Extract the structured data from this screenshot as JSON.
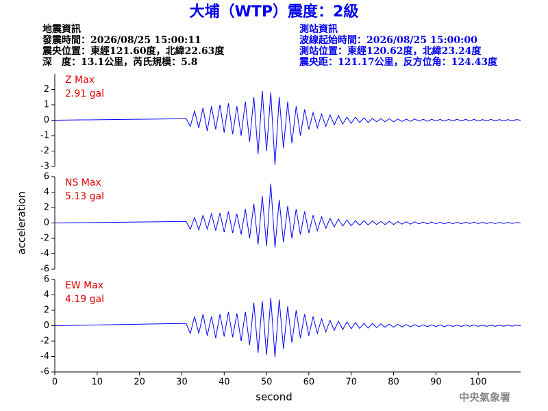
{
  "header": {
    "title": "大埔（WTP）震度：2級",
    "left": [
      "地震資訊",
      "發震時間：2026/08/25 15:00:11",
      "震央位置：東經121.60度，北緯22.63度",
      "深　度：13.1公里，芮氏規模：5.8"
    ],
    "right": [
      "測站資訊",
      "波線起始時間：2026/08/25 15:00:00",
      "測站位置：東經120.62度，北緯23.24度",
      "震央距：121.17公里，反方位角：124.43度"
    ]
  },
  "footer": "中央氣象署",
  "chart_data": [
    {
      "type": "line",
      "annotations": [
        "Z Max",
        "2.91 gal"
      ],
      "color": "#0000ff",
      "xlim": [
        0,
        110
      ],
      "ylim": [
        -3,
        3
      ],
      "yticks": [
        -3,
        -2,
        -1,
        0,
        1,
        2
      ],
      "x": [
        0,
        31,
        32,
        33,
        34,
        35,
        36,
        37,
        38,
        39,
        40,
        41,
        42,
        43,
        44,
        45,
        46,
        47,
        48,
        49,
        50,
        51,
        52,
        53,
        54,
        55,
        56,
        57,
        58,
        59,
        60,
        61,
        62,
        63,
        64,
        65,
        66,
        67,
        68,
        69,
        70,
        71,
        72,
        73,
        74,
        75,
        76,
        77,
        78,
        79,
        80,
        81,
        82,
        83,
        84,
        85,
        86,
        87,
        88,
        89,
        90,
        91,
        92,
        93,
        94,
        95,
        96,
        97,
        98,
        99,
        100,
        101,
        102,
        103,
        104,
        105,
        106,
        107,
        108,
        109,
        110
      ],
      "values": [
        0,
        0.1,
        -0.4,
        0.6,
        -0.5,
        0.8,
        -0.7,
        0.9,
        -0.6,
        1.0,
        -0.8,
        1.1,
        -0.9,
        0.9,
        -1.0,
        1.2,
        -1.4,
        1.5,
        -2.2,
        1.9,
        -2.0,
        1.8,
        -2.9,
        1.5,
        -1.8,
        1.2,
        -1.5,
        0.9,
        -1.0,
        0.7,
        -0.6,
        0.5,
        -0.5,
        0.4,
        -0.4,
        0.35,
        -0.3,
        0.3,
        -0.25,
        0.2,
        -0.2,
        0.2,
        -0.15,
        0.15,
        -0.15,
        0.12,
        -0.1,
        0.1,
        -0.1,
        0.1,
        -0.1,
        0.08,
        -0.08,
        0.07,
        -0.07,
        0.08,
        -0.06,
        0.06,
        -0.07,
        0.06,
        -0.05,
        0.05,
        -0.06,
        0.05,
        -0.05,
        0.06,
        -0.05,
        0.05,
        -0.04,
        0.05,
        -0.05,
        0.04,
        -0.04,
        0.05,
        -0.04,
        0.04,
        -0.04,
        0.04,
        -0.03,
        0.04,
        0
      ]
    },
    {
      "type": "line",
      "annotations": [
        "NS Max",
        "5.13 gal"
      ],
      "color": "#0000ff",
      "ylabel": "acceleration",
      "xlim": [
        0,
        110
      ],
      "ylim": [
        -6,
        6
      ],
      "yticks": [
        -6,
        -4,
        -2,
        0,
        2,
        4,
        6
      ],
      "x": [
        0,
        31,
        32,
        33,
        34,
        35,
        36,
        37,
        38,
        39,
        40,
        41,
        42,
        43,
        44,
        45,
        46,
        47,
        48,
        49,
        50,
        51,
        52,
        53,
        54,
        55,
        56,
        57,
        58,
        59,
        60,
        61,
        62,
        63,
        64,
        65,
        66,
        67,
        68,
        69,
        70,
        71,
        72,
        73,
        74,
        75,
        76,
        77,
        78,
        79,
        80,
        81,
        82,
        83,
        84,
        85,
        86,
        87,
        88,
        89,
        90,
        91,
        92,
        93,
        94,
        95,
        96,
        97,
        98,
        99,
        100,
        101,
        102,
        103,
        104,
        105,
        106,
        107,
        108,
        109,
        110
      ],
      "values": [
        0,
        0.2,
        -0.8,
        0.7,
        -0.9,
        1.0,
        -0.8,
        1.2,
        -1.0,
        1.3,
        -1.2,
        1.5,
        -1.3,
        1.2,
        -1.5,
        1.8,
        -2.0,
        2.5,
        -2.8,
        3.5,
        -3.0,
        5.1,
        -3.2,
        3.0,
        -2.5,
        2.2,
        -2.0,
        1.8,
        -1.5,
        1.5,
        -1.3,
        1.0,
        -1.0,
        0.8,
        -0.7,
        0.6,
        -0.5,
        0.5,
        -0.4,
        0.4,
        -0.35,
        0.3,
        -0.3,
        0.3,
        -0.25,
        0.25,
        -0.2,
        0.2,
        -0.2,
        0.2,
        -0.2,
        0.18,
        -0.15,
        0.15,
        -0.15,
        0.15,
        -0.12,
        0.12,
        -0.12,
        0.12,
        -0.1,
        0.1,
        -0.12,
        0.1,
        -0.1,
        0.1,
        -0.1,
        0.1,
        -0.08,
        0.1,
        -0.08,
        0.08,
        -0.08,
        0.08,
        -0.08,
        0.08,
        -0.06,
        0.08,
        -0.06,
        0.06,
        0
      ]
    },
    {
      "type": "line",
      "annotations": [
        "EW Max",
        "4.19 gal"
      ],
      "color": "#0000ff",
      "xlabel": "second",
      "xlim": [
        0,
        110
      ],
      "xticks": [
        0,
        10,
        20,
        30,
        40,
        50,
        60,
        70,
        80,
        90,
        100
      ],
      "ylim": [
        -6,
        6
      ],
      "yticks": [
        -6,
        -4,
        -2,
        0,
        2,
        4,
        6
      ],
      "x": [
        0,
        31,
        32,
        33,
        34,
        35,
        36,
        37,
        38,
        39,
        40,
        41,
        42,
        43,
        44,
        45,
        46,
        47,
        48,
        49,
        50,
        51,
        52,
        53,
        54,
        55,
        56,
        57,
        58,
        59,
        60,
        61,
        62,
        63,
        64,
        65,
        66,
        67,
        68,
        69,
        70,
        71,
        72,
        73,
        74,
        75,
        76,
        77,
        78,
        79,
        80,
        81,
        82,
        83,
        84,
        85,
        86,
        87,
        88,
        89,
        90,
        91,
        92,
        93,
        94,
        95,
        96,
        97,
        98,
        99,
        100,
        101,
        102,
        103,
        104,
        105,
        106,
        107,
        108,
        109,
        110
      ],
      "values": [
        0,
        0.3,
        -1.0,
        1.2,
        -1.0,
        1.5,
        -1.3,
        1.2,
        -1.6,
        1.5,
        -1.4,
        1.8,
        -1.5,
        1.6,
        -2.0,
        1.8,
        -2.5,
        3.0,
        -3.5,
        3.2,
        -3.8,
        3.6,
        -4.1,
        3.4,
        -3.0,
        2.5,
        -2.2,
        2.0,
        -1.6,
        1.5,
        -1.3,
        1.2,
        -1.0,
        0.9,
        -0.8,
        0.7,
        -0.6,
        0.6,
        -0.5,
        0.5,
        -0.4,
        0.4,
        -0.35,
        0.3,
        -0.3,
        0.3,
        -0.25,
        0.25,
        -0.2,
        0.2,
        -0.2,
        0.18,
        -0.15,
        0.15,
        -0.15,
        0.15,
        -0.12,
        0.12,
        -0.12,
        0.12,
        -0.1,
        0.1,
        -0.12,
        0.1,
        -0.1,
        0.1,
        -0.1,
        0.1,
        -0.08,
        0.1,
        -0.08,
        0.08,
        -0.08,
        0.08,
        -0.08,
        0.08,
        -0.06,
        0.08,
        -0.06,
        0.06,
        0
      ]
    }
  ]
}
